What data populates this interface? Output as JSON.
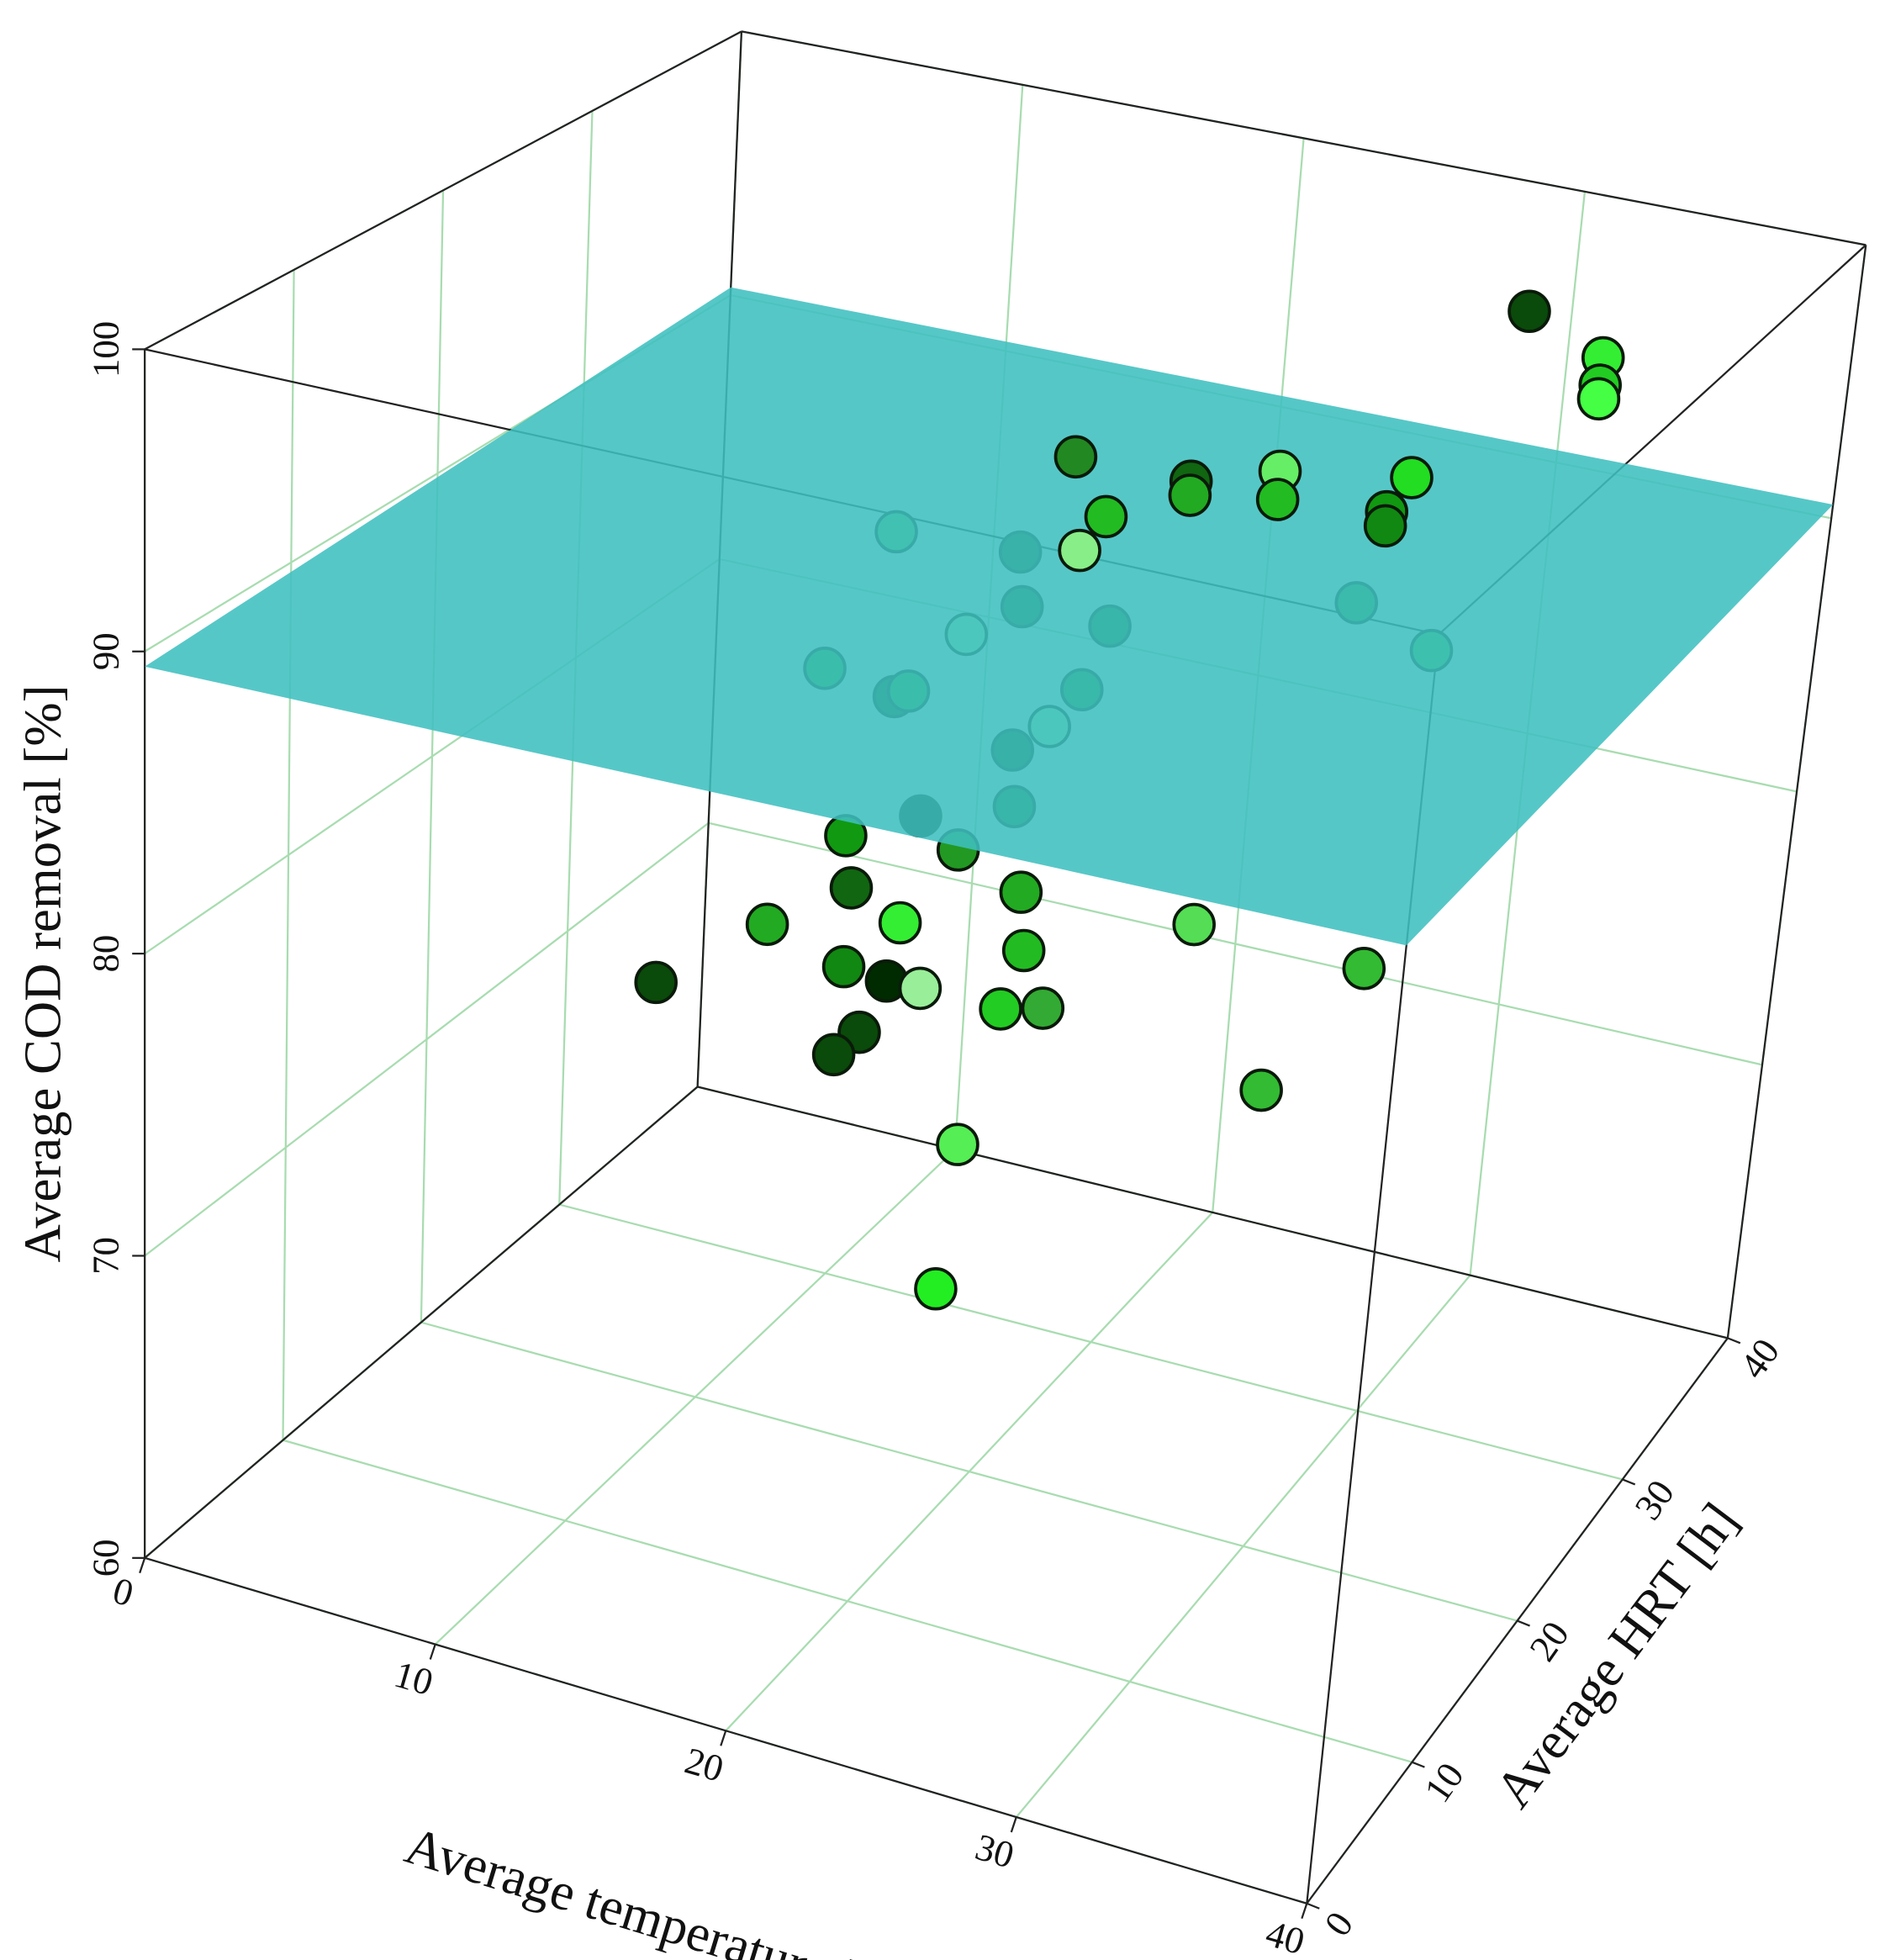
{
  "chart_data": {
    "type": "scatter3d",
    "xlabel": "Average temperature [°C]",
    "ylabel": "Average HRT [h]",
    "zlabel": "Average COD removal [%]",
    "xlim": [
      0,
      40
    ],
    "xticks": [
      0,
      10,
      20,
      30,
      40
    ],
    "ylim": [
      0,
      40
    ],
    "yticks": [
      0,
      10,
      20,
      30,
      40
    ],
    "zlim": [
      60,
      100
    ],
    "zticks": [
      60,
      70,
      80,
      90,
      100
    ],
    "grid": true,
    "plane": {
      "color": "#3fbfbf",
      "values": [
        89.5,
        90.2,
        90.5,
        90.3
      ]
    },
    "x": [
      30,
      32,
      32,
      32,
      28,
      28,
      28,
      25,
      25,
      22,
      22,
      20,
      20,
      18,
      18,
      19,
      18,
      22,
      22,
      21,
      28,
      30,
      15,
      17,
      30,
      35,
      34,
      12,
      14,
      19,
      20,
      19,
      16,
      22,
      23,
      16,
      18,
      17,
      12,
      10,
      16,
      18,
      20,
      16,
      16,
      8,
      18,
      20,
      26
    ],
    "y": [
      36,
      38,
      38,
      38,
      32,
      30,
      30,
      28,
      28,
      28,
      28,
      26,
      24,
      28,
      24,
      22,
      20,
      22,
      20,
      20,
      28,
      30,
      16,
      18,
      10,
      12,
      6,
      28,
      24,
      22,
      20,
      18,
      16,
      16,
      14,
      22,
      16,
      14,
      26,
      24,
      20,
      18,
      20,
      18,
      16,
      20,
      22,
      16,
      8
    ],
    "z": [
      97,
      95,
      94,
      93.5,
      92,
      91.5,
      91,
      93,
      92,
      92,
      91.5,
      91,
      90.5,
      92,
      90,
      89,
      88.5,
      89,
      87.5,
      86,
      89,
      87,
      88,
      87,
      85,
      84,
      82,
      88,
      84,
      84,
      83,
      82,
      82.5,
      82,
      81,
      81,
      80,
      79,
      76,
      75,
      76,
      77,
      76,
      75,
      75,
      74,
      70,
      68,
      82
    ],
    "colors": [
      "#0a4a0a",
      "#33ee33",
      "#22cc22",
      "#44ff44",
      "#22dd22",
      "#119911",
      "#118811",
      "#66ee66",
      "#22bb22",
      "#116611",
      "#22aa22",
      "#22bb22",
      "#88ee88",
      "#228822",
      "#115511",
      "#116611",
      "#aaffaa",
      "#117711",
      "#118811",
      "#aaffaa",
      "#229922",
      "#33cc33",
      "#22aa22",
      "#22aa22",
      "#55dd55",
      "#33bb33",
      "#33bb33",
      "#55cc55",
      "#0a4a0a",
      "#0a4a0a",
      "#117711",
      "#229922",
      "#119911",
      "#22aa22",
      "#22bb22",
      "#001a00",
      "#33ee33",
      "#118811",
      "#116611",
      "#22aa22",
      "#002a00",
      "#99ee99",
      "#22cc22",
      "#0a4a0a",
      "#0a4a0a",
      "#0a4a0a",
      "#55ee55",
      "#22ee22",
      "#33aa33"
    ]
  }
}
